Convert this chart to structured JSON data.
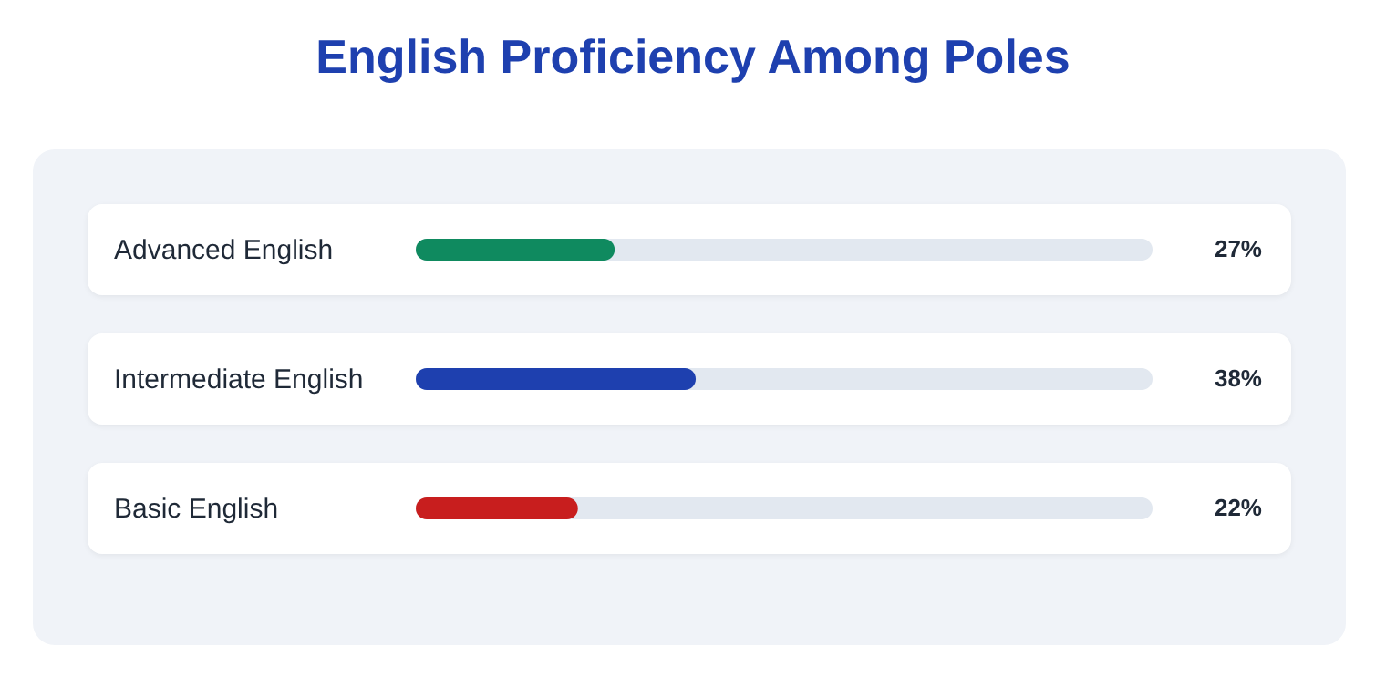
{
  "chart_data": {
    "type": "bar",
    "orientation": "horizontal",
    "title": "English Proficiency Among Poles",
    "categories": [
      "Advanced English",
      "Intermediate English",
      "Basic English"
    ],
    "values": [
      27,
      38,
      22
    ],
    "colors": [
      "#0f8a5f",
      "#1e40af",
      "#c81e1e"
    ],
    "value_labels": [
      "27%",
      "38%",
      "22%"
    ],
    "xlim": [
      0,
      100
    ],
    "tick_labels": "y"
  }
}
